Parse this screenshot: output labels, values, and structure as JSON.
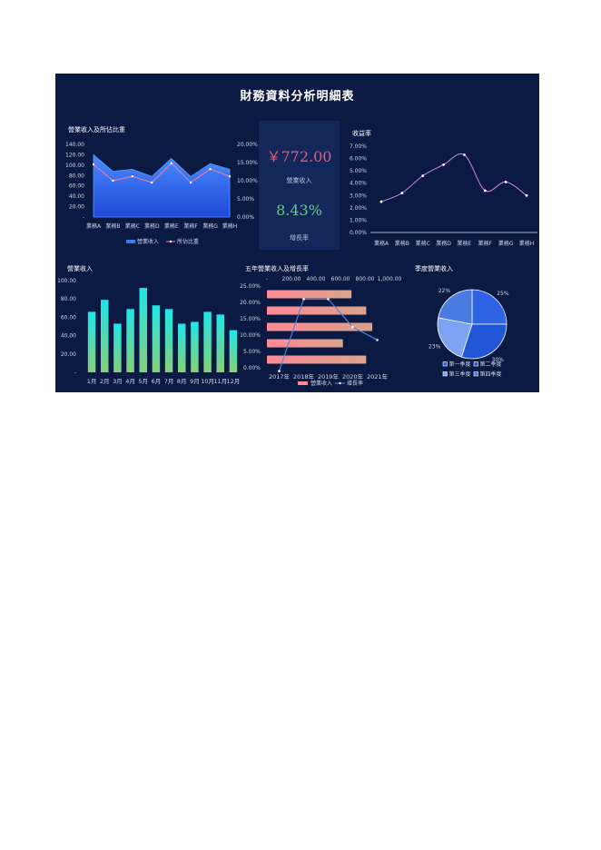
{
  "dashboard": {
    "title": "財務資料分析明細表"
  },
  "kpi": {
    "value_revenue": "￥772.00",
    "label_revenue": "營業收入",
    "value_growth": "8.43%",
    "label_growth": "增長率"
  },
  "colors": {
    "background": "#0b1a42",
    "panel": "#13275a",
    "area": "#3f7bff",
    "line_pink": "#ff7c94",
    "profit_line": "#c07de0",
    "bar_top": "#1fe0e6",
    "bar_bottom": "#7ed07b",
    "hbar_left": "#ff8a94",
    "hbar_right": "#d8a089",
    "growth_line": "#4d86e6",
    "pie": [
      "#2e63e6",
      "#1f55d6",
      "#7da3f2",
      "#4a7be3"
    ]
  },
  "chart_data": [
    {
      "id": "c1",
      "type": "area",
      "title": "營業收入及所佔比重",
      "categories": [
        "業務A",
        "業務B",
        "業務C",
        "業務D",
        "業務E",
        "業務F",
        "業務G",
        "業務H"
      ],
      "series": [
        {
          "name": "營業收入",
          "type": "area",
          "axis": "left",
          "values": [
            120,
            88,
            92,
            78,
            113,
            78,
            103,
            92
          ]
        },
        {
          "name": "所佔比重",
          "type": "line",
          "axis": "right",
          "values": [
            0.145,
            0.1,
            0.112,
            0.095,
            0.148,
            0.095,
            0.132,
            0.112
          ]
        }
      ],
      "y_left": {
        "min": 0,
        "max": 140,
        "ticks": [
          "-",
          "20.00",
          "40.00",
          "60.00",
          "80.00",
          "100.00",
          "120.00",
          "140.00"
        ]
      },
      "y_right": {
        "min": 0,
        "max": 0.2,
        "ticks": [
          "0.00%",
          "5.00%",
          "10.00%",
          "15.00%",
          "20.00%"
        ]
      },
      "legend": "bottom"
    },
    {
      "id": "c2",
      "type": "line",
      "title": "收益率",
      "categories": [
        "業務A",
        "業務B",
        "業務C",
        "業務D",
        "業務E",
        "業務F",
        "業務G",
        "業務H"
      ],
      "series": [
        {
          "name": "收益率",
          "values": [
            0.025,
            0.032,
            0.046,
            0.055,
            0.063,
            0.034,
            0.041,
            0.03
          ]
        }
      ],
      "y": {
        "min": 0,
        "max": 0.07,
        "ticks": [
          "0.00%",
          "1.00%",
          "2.00%",
          "3.00%",
          "4.00%",
          "5.00%",
          "6.00%",
          "7.00%"
        ]
      },
      "smooth": true
    },
    {
      "id": "c3",
      "type": "bar",
      "title": "營業收入",
      "categories": [
        "1月",
        "2月",
        "3月",
        "4月",
        "5月",
        "6月",
        "7月",
        "8月",
        "9月",
        "10月",
        "11月",
        "12月"
      ],
      "values": [
        66,
        79,
        53,
        69,
        92,
        73,
        69,
        53,
        55,
        66,
        63,
        46
      ],
      "y": {
        "min": 0,
        "max": 100,
        "ticks": [
          "-",
          "20.00",
          "40.00",
          "60.00",
          "80.00",
          "100.00"
        ]
      }
    },
    {
      "id": "c4",
      "type": "bar",
      "orientation": "horizontal",
      "title": "五年營業收入及增長率",
      "categories": [
        "2017年",
        "2018年",
        "2019年",
        "2020年",
        "2021年"
      ],
      "series": [
        {
          "name": "營業收入",
          "type": "bar",
          "values": [
            690,
            810,
            860,
            620,
            810
          ]
        },
        {
          "name": "增長率",
          "type": "line",
          "values": [
            -0.01,
            0.21,
            0.21,
            0.125,
            0.085
          ]
        }
      ],
      "x_top": {
        "min": 0,
        "max": 1000,
        "ticks": [
          "-",
          "200.00",
          "400.00",
          "600.00",
          "800.00",
          "1,000.00"
        ]
      },
      "y_left": {
        "min": 0,
        "max": 0.25,
        "ticks": [
          "0.00%",
          "5.00%",
          "10.00%",
          "15.00%",
          "20.00%",
          "25.00%"
        ]
      },
      "legend": "bottom"
    },
    {
      "id": "c5",
      "type": "pie",
      "title": "季度營業收入",
      "labels": [
        "第一季度",
        "第二季度",
        "第三季度",
        "第四季度"
      ],
      "values": [
        25,
        30,
        23,
        22
      ],
      "value_labels": [
        "25%",
        "30%",
        "23%",
        "22%"
      ],
      "legend": "bottom"
    }
  ]
}
